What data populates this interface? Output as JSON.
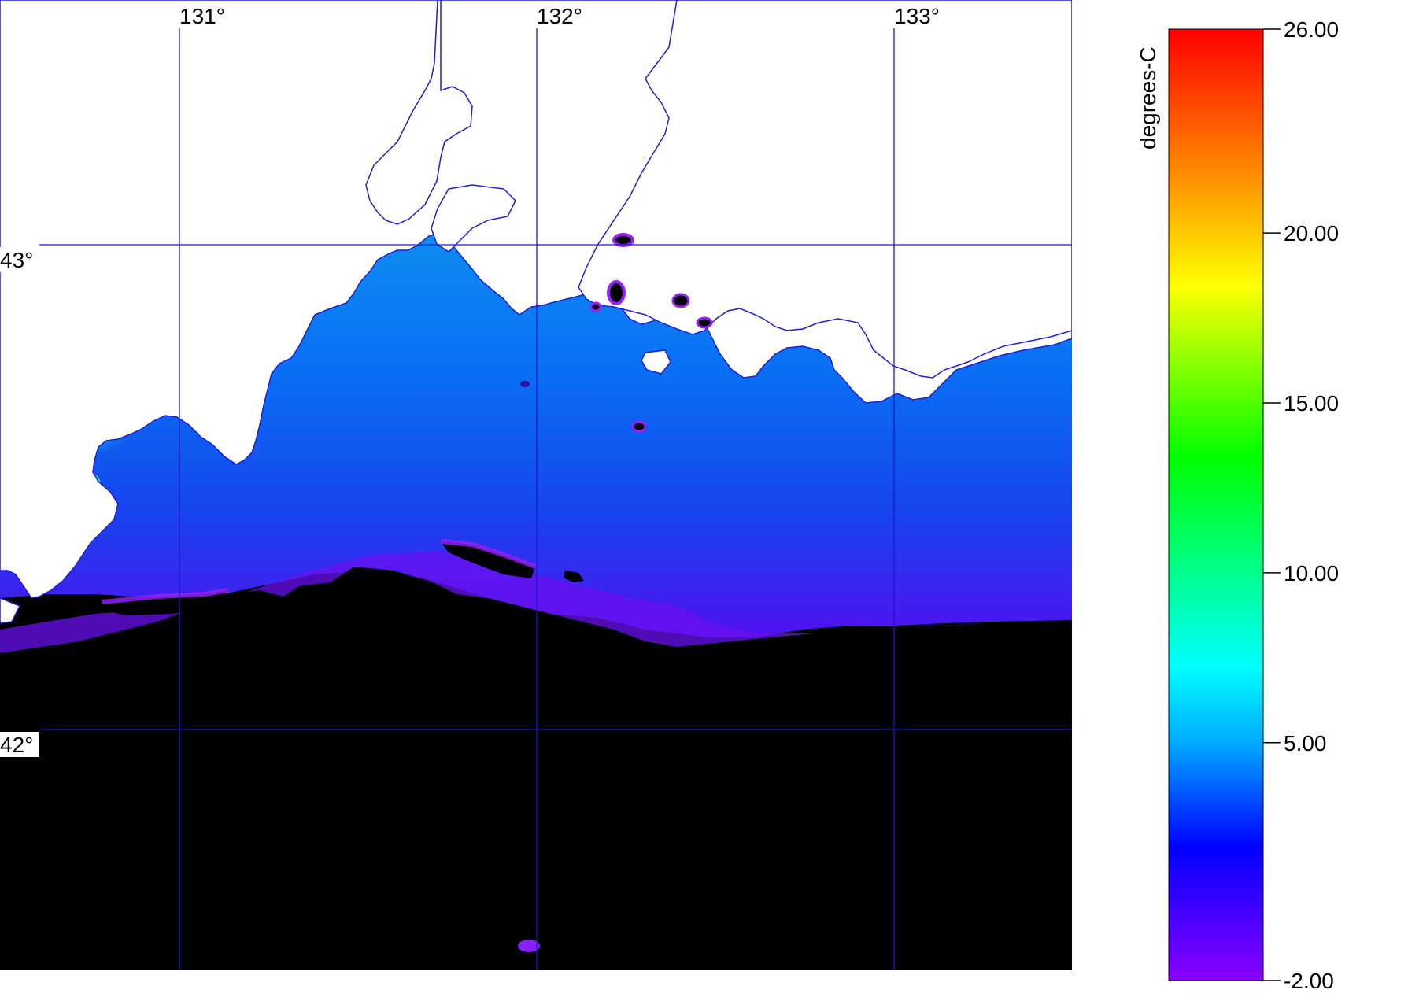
{
  "map": {
    "longitude_labels": [
      "131°",
      "132°",
      "133°"
    ],
    "latitude_labels": [
      "43°",
      "42°"
    ],
    "colors": {
      "land": "#ffffff",
      "no_data": "#000000",
      "coast": "#1f1fd0",
      "graticule": "#1a1acc"
    }
  },
  "colorbar": {
    "unit": "degrees-C",
    "min": -2.0,
    "max": 26.0,
    "tick_labels": [
      "26.00",
      "20.00",
      "15.00",
      "10.00",
      "5.00",
      "-2.00"
    ],
    "tick_values": [
      26,
      20,
      15,
      10,
      5,
      -2
    ],
    "gradient_colors": [
      "#8a00ff",
      "#0000ff",
      "#00aaff",
      "#00ffff",
      "#00ff00",
      "#ffff00",
      "#ff8000",
      "#ff0000"
    ]
  }
}
